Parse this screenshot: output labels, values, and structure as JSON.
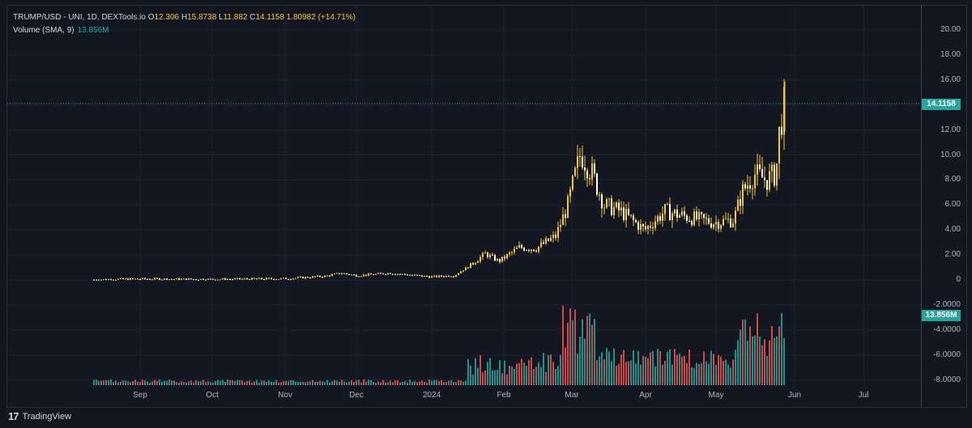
{
  "legend": {
    "symbol": "TRUMP/USD",
    "source": " - UNI, 1D, DEXTools.io",
    "o_key": "O",
    "o_val": "12.306",
    "h_key": "H",
    "h_val": "15.8738",
    "l_key": "L",
    "l_val": "11.882",
    "c_key": "C",
    "c_val": "14.1158",
    "change": "1.80982 (+14.71%)"
  },
  "volume_legend": {
    "label": "Volume (SMA, 9)",
    "value": "13.856M"
  },
  "price_tags": {
    "last_price": "14.1158",
    "last_volume": "13.856M"
  },
  "y_axis": {
    "price_ticks": [
      "20.00",
      "18.00",
      "16.00",
      "14.00",
      "12.00",
      "10.00",
      "8.00",
      "6.00",
      "4.00",
      "2.00",
      "0"
    ],
    "volume_ticks": [
      "-2.0000",
      "-4.0000",
      "-6.0000",
      "-8.0000"
    ]
  },
  "x_axis": {
    "ticks": [
      "Sep",
      "Oct",
      "Nov",
      "Dec",
      "2024",
      "Feb",
      "Mar",
      "Apr",
      "May",
      "Jun",
      "Jul"
    ]
  },
  "footer": {
    "brand": "TradingView"
  },
  "colors": {
    "background": "#131722",
    "candle": "#f3c730",
    "up_volume": "#26a69a",
    "down_volume": "#ef5350",
    "grid": "#1f2330"
  },
  "chart_data": {
    "type": "candlestick",
    "title": "TRUMP/USD - UNI, 1D, DEXTools.io",
    "last_close": 14.1158,
    "series": [
      {
        "name": "Price",
        "points": [
          [
            "2023-08-15",
            0.02
          ],
          [
            "2023-09-01",
            0.08
          ],
          [
            "2023-10-01",
            0.05
          ],
          [
            "2023-11-01",
            0.1
          ],
          [
            "2023-11-20",
            0.35
          ],
          [
            "2023-11-27",
            0.55
          ],
          [
            "2023-12-10",
            0.35
          ],
          [
            "2023-12-20",
            0.55
          ],
          [
            "2024-01-05",
            0.3
          ],
          [
            "2024-01-15",
            0.4
          ],
          [
            "2024-01-22",
            1.2
          ],
          [
            "2024-01-29",
            2.1
          ],
          [
            "2024-02-05",
            1.5
          ],
          [
            "2024-02-12",
            2.6
          ],
          [
            "2024-02-19",
            2.5
          ],
          [
            "2024-02-26",
            3.5
          ],
          [
            "2024-03-01",
            6.0
          ],
          [
            "2024-03-05",
            10.0
          ],
          [
            "2024-03-10",
            8.5
          ],
          [
            "2024-03-15",
            6.0
          ],
          [
            "2024-03-22",
            5.5
          ],
          [
            "2024-04-01",
            4.0
          ],
          [
            "2024-04-10",
            5.5
          ],
          [
            "2024-04-20",
            5.0
          ],
          [
            "2024-05-01",
            4.5
          ],
          [
            "2024-05-10",
            6.5
          ],
          [
            "2024-05-15",
            8.5
          ],
          [
            "2024-05-20",
            8.0
          ],
          [
            "2024-05-24",
            12.5
          ],
          [
            "2024-05-27",
            14.1158
          ]
        ]
      },
      {
        "name": "Volume (SMA, 9)",
        "last_value": "13.856M"
      }
    ],
    "ylim": [
      0,
      20
    ],
    "grid": true
  }
}
